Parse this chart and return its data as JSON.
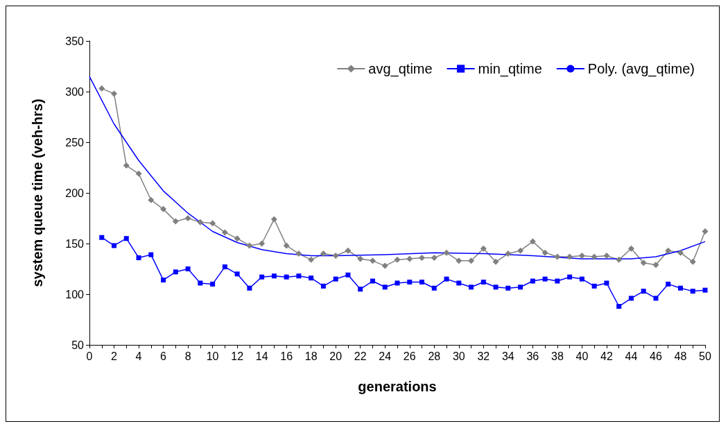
{
  "chart_data": {
    "type": "line",
    "xlabel": "generations",
    "ylabel": "system queue time (veh-hrs)",
    "xlim": [
      0,
      50
    ],
    "ylim": [
      50,
      350
    ],
    "xticks": [
      0,
      {
        "value": 1,
        "label": null
      },
      2,
      {
        "value": 3,
        "label": null
      },
      4,
      {
        "value": 5,
        "label": null
      },
      6,
      {
        "value": 7,
        "label": null
      },
      8,
      {
        "value": 9,
        "label": null
      },
      10,
      {
        "value": 11,
        "label": null
      },
      12,
      {
        "value": 13,
        "label": null
      },
      14,
      {
        "value": 15,
        "label": null
      },
      16,
      {
        "value": 17,
        "label": null
      },
      18,
      {
        "value": 19,
        "label": null
      },
      20,
      {
        "value": 21,
        "label": null
      },
      22,
      {
        "value": 23,
        "label": null
      },
      24,
      {
        "value": 25,
        "label": null
      },
      26,
      {
        "value": 27,
        "label": null
      },
      28,
      {
        "value": 29,
        "label": null
      },
      30,
      {
        "value": 31,
        "label": null
      },
      32,
      {
        "value": 33,
        "label": null
      },
      34,
      {
        "value": 35,
        "label": null
      },
      36,
      {
        "value": 37,
        "label": null
      },
      38,
      {
        "value": 39,
        "label": null
      },
      40,
      {
        "value": 41,
        "label": null
      },
      42,
      {
        "value": 43,
        "label": null
      },
      44,
      {
        "value": 45,
        "label": null
      },
      46,
      {
        "value": 47,
        "label": null
      },
      48,
      {
        "value": 49,
        "label": null
      },
      50
    ],
    "yticks": [
      50,
      100,
      150,
      200,
      250,
      300,
      350
    ],
    "grid": false,
    "legend": "top right",
    "line_style": "solid",
    "x": [
      1,
      2,
      3,
      4,
      5,
      6,
      7,
      8,
      9,
      10,
      11,
      12,
      13,
      14,
      15,
      16,
      17,
      18,
      19,
      20,
      21,
      22,
      23,
      24,
      25,
      26,
      27,
      28,
      29,
      30,
      31,
      32,
      33,
      34,
      35,
      36,
      37,
      38,
      39,
      40,
      41,
      42,
      43,
      44,
      45,
      46,
      47,
      48,
      49,
      50
    ],
    "series": [
      {
        "name": "avg_qtime",
        "color": "#808080",
        "marker": "diamond",
        "values": [
          303,
          298,
          227,
          219,
          193,
          184,
          172,
          175,
          171,
          170,
          161,
          155,
          148,
          150,
          174,
          148,
          140,
          134,
          140,
          138,
          143,
          135,
          133,
          128,
          134,
          135,
          136,
          136,
          141,
          133,
          133,
          145,
          132,
          140,
          143,
          152,
          141,
          137,
          137,
          138,
          137,
          138,
          134,
          145,
          131,
          129,
          143,
          141,
          132,
          162
        ]
      },
      {
        "name": "min_qtime",
        "color": "#0000ff",
        "marker": "square",
        "values": [
          156,
          148,
          155,
          136,
          139,
          114,
          122,
          125,
          111,
          110,
          127,
          120,
          106,
          117,
          118,
          117,
          118,
          116,
          108,
          115,
          119,
          105,
          113,
          107,
          111,
          112,
          112,
          106,
          115,
          111,
          107,
          112,
          107,
          106,
          107,
          113,
          115,
          113,
          117,
          115,
          108,
          111,
          88,
          96,
          103,
          96,
          110,
          106,
          103,
          104
        ]
      },
      {
        "name": "Poly. (avg_qtime)",
        "color": "#0000ff",
        "marker": "none",
        "x": [
          0,
          2,
          4,
          6,
          8,
          10,
          12,
          14,
          16,
          18,
          20,
          24,
          28,
          32,
          36,
          40,
          44,
          46,
          48,
          50
        ],
        "values": [
          315,
          268,
          232,
          202,
          180,
          162,
          151,
          144,
          140,
          138,
          138,
          139,
          141,
          140,
          138,
          135,
          135,
          137,
          143,
          152
        ]
      }
    ]
  }
}
